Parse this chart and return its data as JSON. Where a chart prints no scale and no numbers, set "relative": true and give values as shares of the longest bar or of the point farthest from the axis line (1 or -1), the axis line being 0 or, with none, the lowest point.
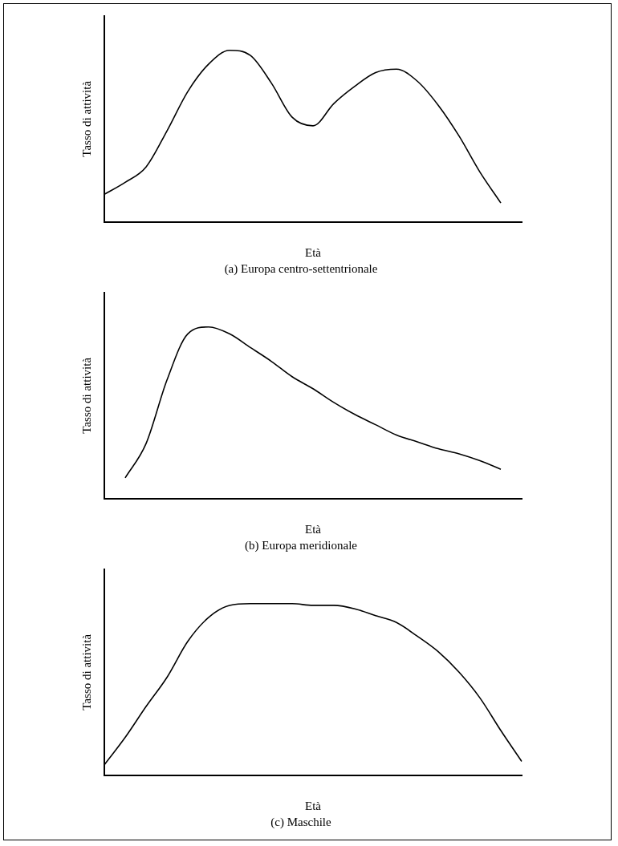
{
  "chart_data": [
    {
      "type": "line",
      "relative": true,
      "title": "(a) Europa centro-settentrionale",
      "xlabel": "Età",
      "ylabel": "Tasso di attività",
      "grid": false,
      "legend": false,
      "marker": "none",
      "color": "#000000",
      "categories": [
        null,
        null,
        null,
        null,
        null,
        null,
        null,
        null,
        null,
        null,
        null,
        null,
        null,
        null,
        null,
        null,
        null,
        null,
        null,
        null,
        null
      ],
      "values": [
        0.16,
        0.23,
        0.32,
        0.53,
        0.76,
        0.92,
        1,
        0.97,
        0.81,
        0.61,
        0.56,
        0.69,
        0.79,
        0.87,
        0.89,
        0.82,
        0.68,
        0.5,
        0.29,
        0.11,
        null
      ]
    },
    {
      "type": "line",
      "relative": true,
      "title": "(b) Europa meridionale",
      "xlabel": "Età",
      "ylabel": "Tasso di attività",
      "grid": false,
      "legend": false,
      "marker": "none",
      "color": "#000000",
      "categories": [
        null,
        null,
        null,
        null,
        null,
        null,
        null,
        null,
        null,
        null,
        null,
        null,
        null,
        null,
        null,
        null,
        null,
        null,
        null,
        null,
        null
      ],
      "values": [
        null,
        0.12,
        0.32,
        0.69,
        0.96,
        1,
        0.96,
        0.88,
        0.8,
        0.71,
        0.64,
        0.56,
        0.49,
        0.43,
        0.37,
        0.33,
        0.29,
        0.26,
        0.22,
        0.17,
        null
      ]
    },
    {
      "type": "line",
      "relative": true,
      "title": "(c) Maschile",
      "xlabel": "Età",
      "ylabel": "Tasso di attività",
      "grid": false,
      "legend": false,
      "marker": "none",
      "color": "#000000",
      "categories": [
        null,
        null,
        null,
        null,
        null,
        null,
        null,
        null,
        null,
        null,
        null,
        null,
        null,
        null,
        null,
        null,
        null,
        null,
        null,
        null,
        null
      ],
      "values": [
        0.06,
        0.22,
        0.4,
        0.57,
        0.78,
        0.92,
        0.99,
        1,
        1,
        1,
        0.99,
        0.99,
        0.97,
        0.93,
        0.89,
        0.81,
        0.72,
        0.6,
        0.45,
        0.26,
        0.08
      ]
    }
  ]
}
